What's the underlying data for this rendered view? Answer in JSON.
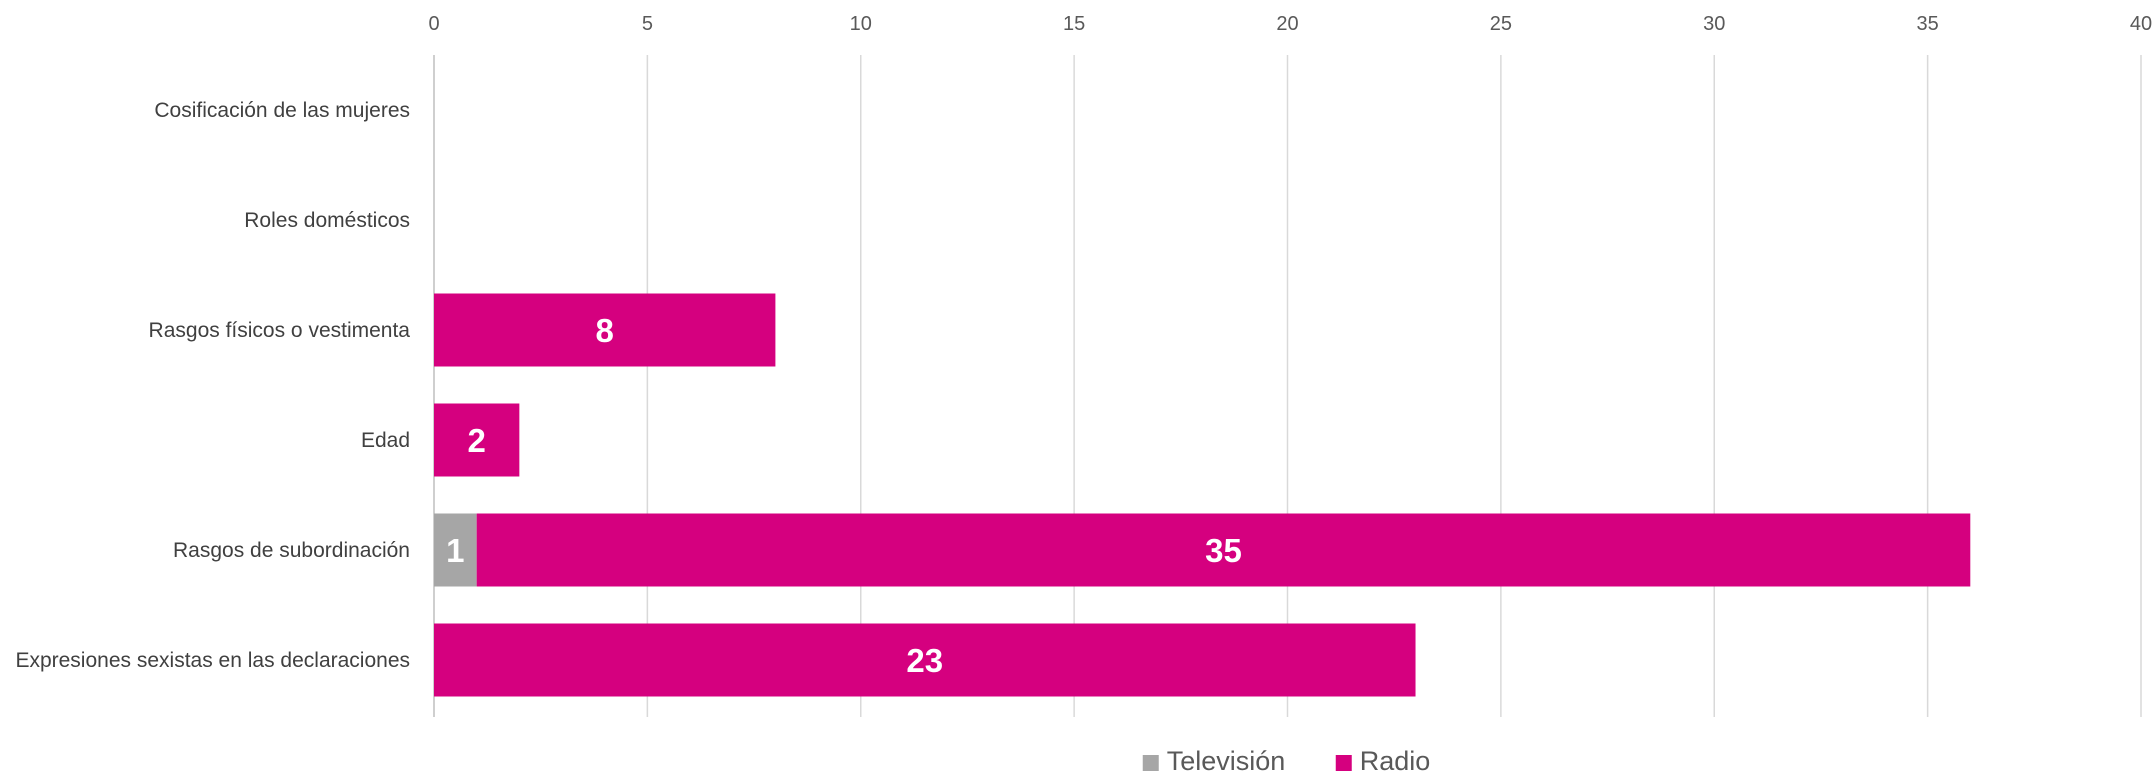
{
  "chart_data": {
    "type": "bar",
    "orientation": "horizontal",
    "stacked": true,
    "categories": [
      "Cosificación de las mujeres",
      "Roles domésticos",
      "Rasgos físicos o vestimenta",
      "Edad",
      "Rasgos de subordinación",
      "Expresiones sexistas en las declaraciones"
    ],
    "series": [
      {
        "name": "Televisión",
        "color": "#a6a6a6",
        "values": [
          0,
          0,
          0,
          0,
          1,
          0
        ]
      },
      {
        "name": "Radio",
        "color": "#d5007f",
        "values": [
          0,
          0,
          8,
          2,
          35,
          23
        ]
      }
    ],
    "xlim": [
      0,
      40
    ],
    "xticks": [
      "0",
      "5",
      "10",
      "15",
      "20",
      "25",
      "30",
      "35",
      "40"
    ],
    "x_axis_position": "top",
    "grid": true,
    "legend_position": "bottom",
    "data_labels": true
  }
}
